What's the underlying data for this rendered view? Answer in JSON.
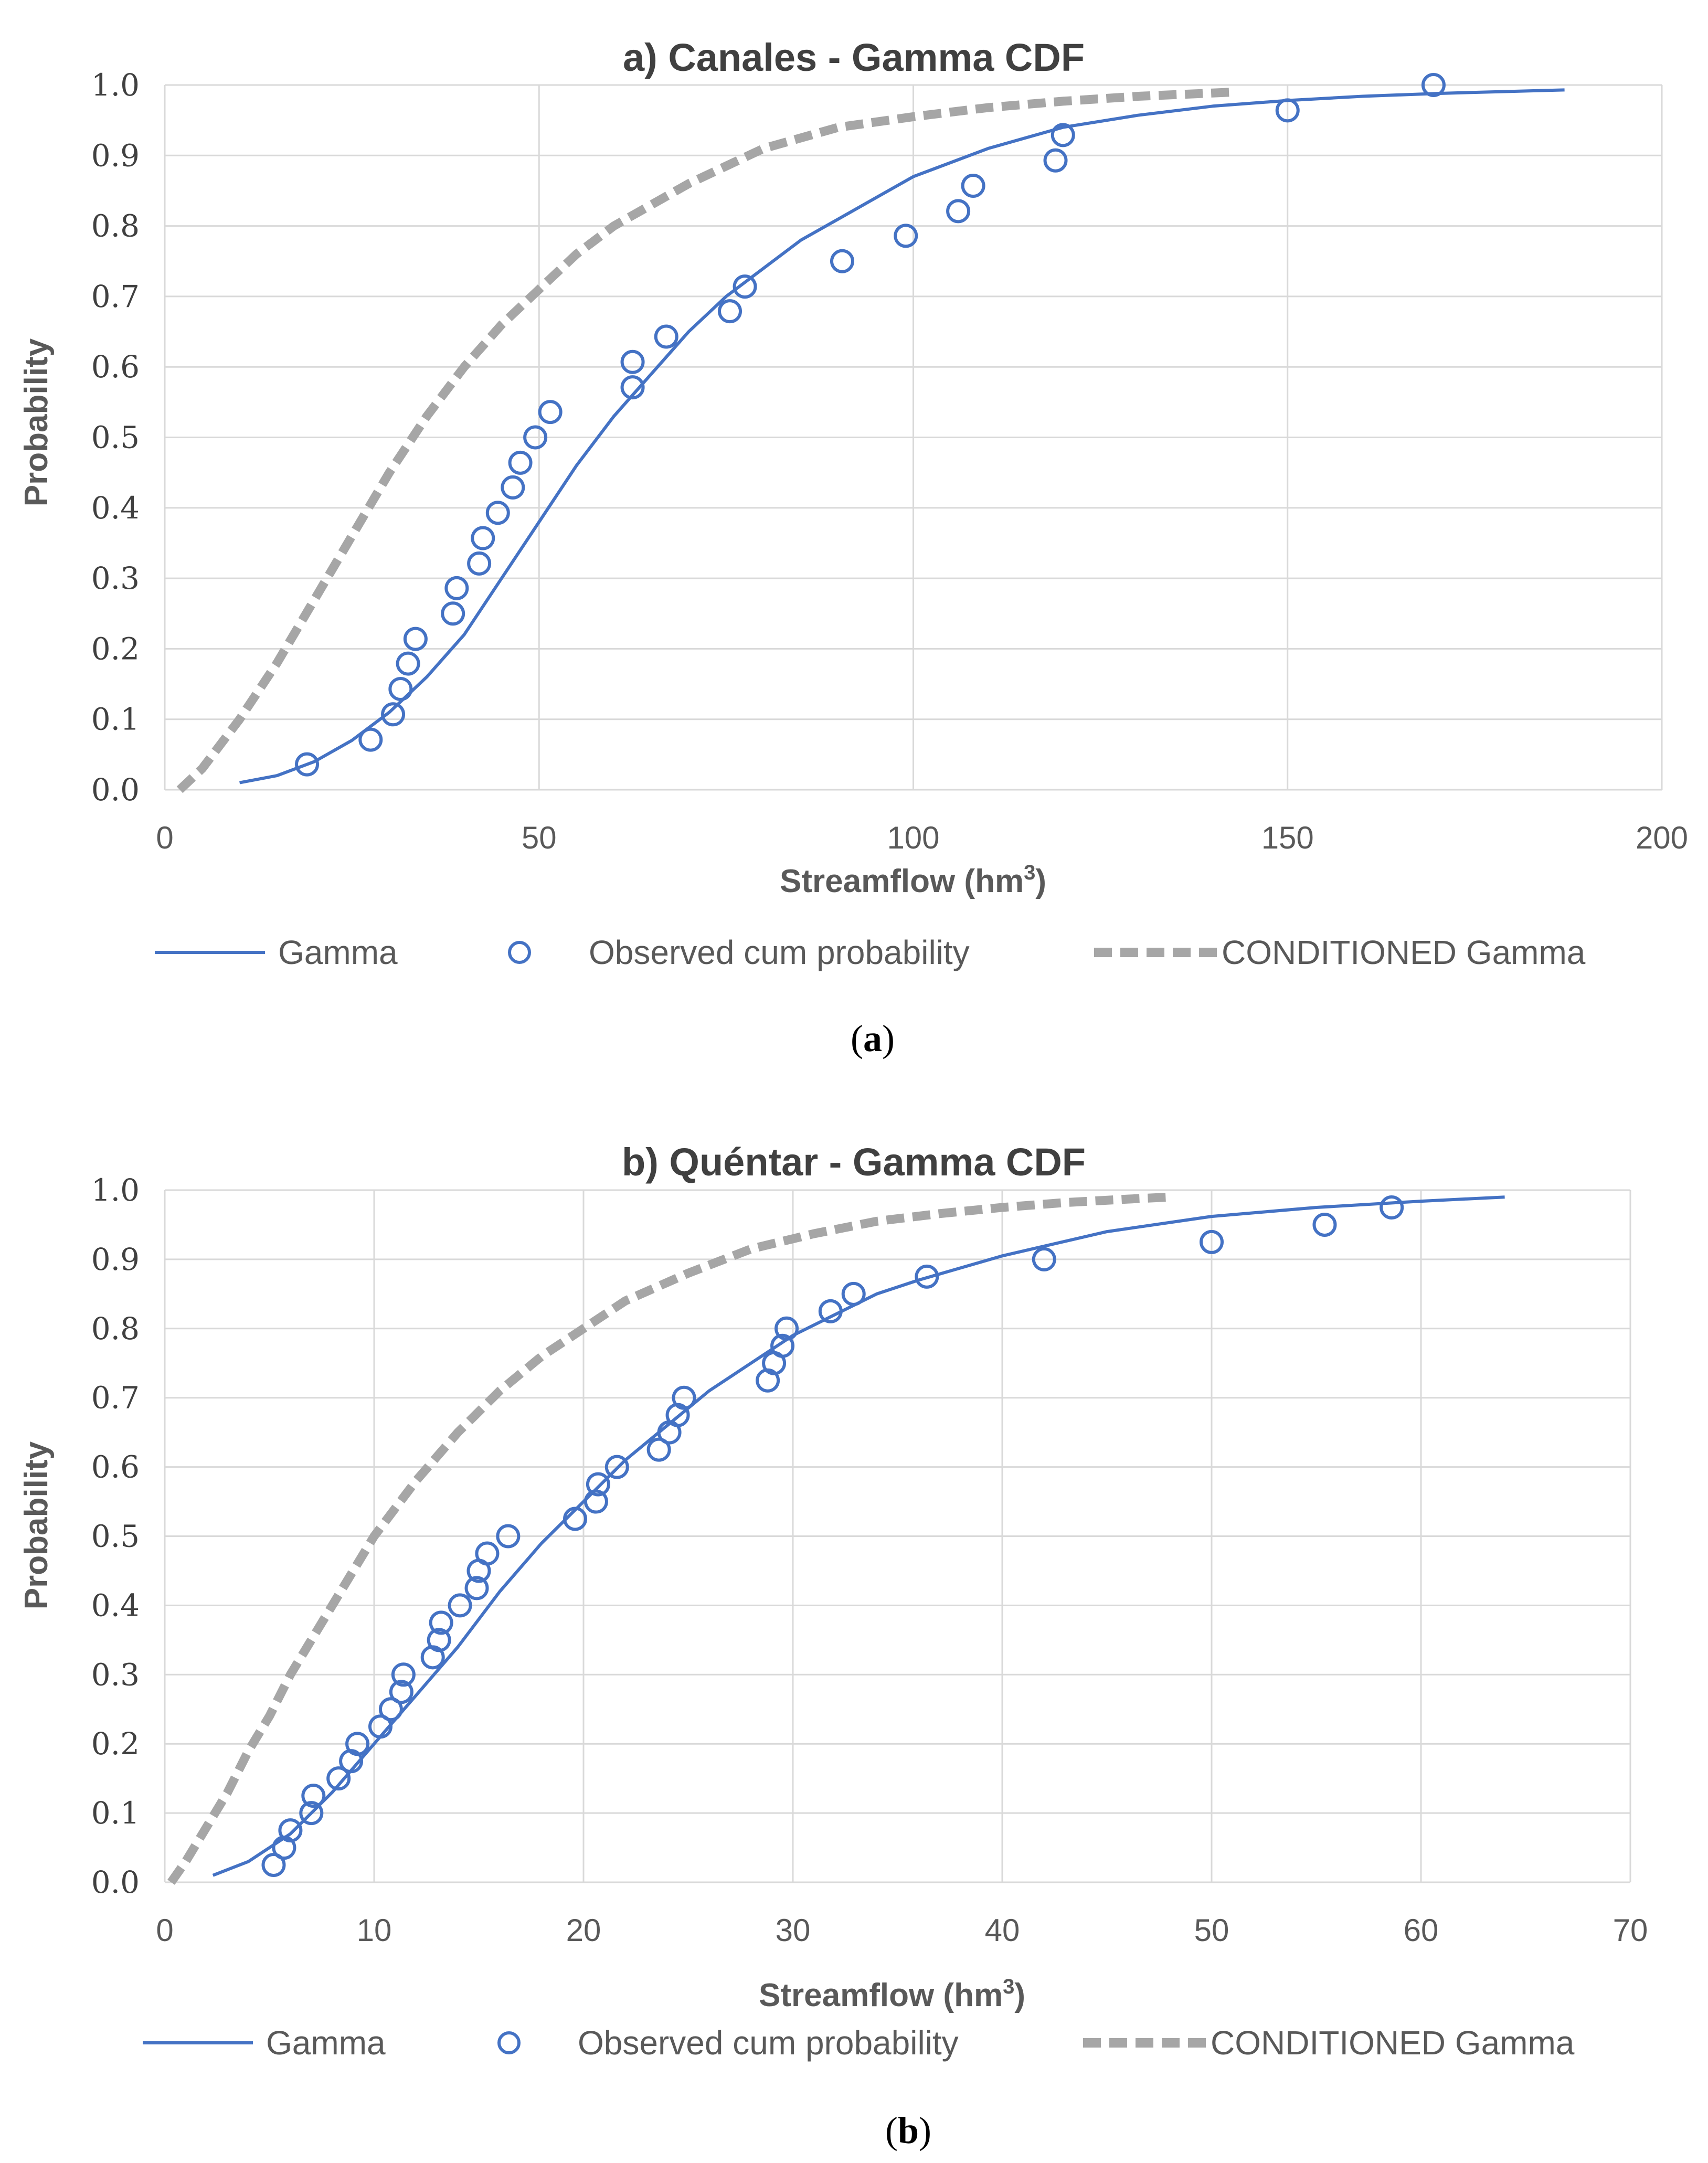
{
  "colors": {
    "gamma": "#4472C4",
    "conditioned": "#A6A6A6",
    "grid": "#D9D9D9",
    "axis_text": "#595959"
  },
  "legend": {
    "gamma": "Gamma",
    "observed": "Observed cum probability",
    "conditioned": "CONDITIONED Gamma"
  },
  "captions": {
    "a_open": "(",
    "a_letter": "a",
    "a_close": ")",
    "b_open": "(",
    "b_letter": "b",
    "b_close": ")"
  },
  "chart_data": [
    {
      "type": "line",
      "title": "a) Canales - Gamma CDF",
      "xlabel": "Streamflow (hm",
      "xlabel_sup": "3",
      "xlabel_close": ")",
      "ylabel": "Probability",
      "xlim": [
        0,
        200
      ],
      "ylim": [
        0,
        1
      ],
      "xticks": [
        0,
        50,
        100,
        150,
        200
      ],
      "xtick_labels": [
        "0",
        "50",
        "100",
        "150",
        "200"
      ],
      "yticks": [
        0,
        0.1,
        0.2,
        0.3,
        0.4,
        0.5,
        0.6,
        0.7,
        0.8,
        0.9,
        1.0
      ],
      "ytick_labels": [
        "0.0",
        "0.1",
        "0.2",
        "0.3",
        "0.4",
        "0.5",
        "0.6",
        "0.7",
        "0.8",
        "0.9",
        "1.0"
      ],
      "grid": true,
      "legend_position": "bottom",
      "series": [
        {
          "name": "Gamma",
          "style": "solid",
          "x": [
            10,
            15,
            20,
            25,
            30,
            35,
            40,
            45,
            50,
            55,
            60,
            65,
            70,
            75,
            80,
            85,
            90,
            95,
            100,
            110,
            120,
            130,
            140,
            150,
            160,
            170,
            180,
            187
          ],
          "y": [
            0.01,
            0.02,
            0.04,
            0.07,
            0.11,
            0.16,
            0.22,
            0.3,
            0.38,
            0.46,
            0.53,
            0.59,
            0.65,
            0.7,
            0.74,
            0.78,
            0.81,
            0.84,
            0.87,
            0.91,
            0.94,
            0.957,
            0.97,
            0.978,
            0.984,
            0.988,
            0.991,
            0.993
          ]
        },
        {
          "name": "Observed cum probability",
          "style": "markers",
          "x": [
            19,
            27.5,
            30.5,
            31.5,
            32.5,
            33.5,
            38.5,
            39,
            42,
            42.5,
            44.5,
            46.5,
            47.5,
            49.5,
            51.5,
            62.5,
            62.5,
            67,
            75.5,
            77.5,
            90.5,
            99,
            106,
            108,
            119,
            120,
            150,
            169.5
          ],
          "y": [
            0.036,
            0.071,
            0.107,
            0.143,
            0.179,
            0.214,
            0.25,
            0.286,
            0.321,
            0.357,
            0.393,
            0.429,
            0.464,
            0.5,
            0.536,
            0.571,
            0.607,
            0.643,
            0.679,
            0.714,
            0.75,
            0.786,
            0.821,
            0.857,
            0.893,
            0.929,
            0.964,
            1.0
          ]
        },
        {
          "name": "CONDITIONED Gamma",
          "style": "dashed",
          "x": [
            2,
            5,
            10,
            15,
            20,
            25,
            30,
            35,
            40,
            45,
            50,
            55,
            60,
            70,
            80,
            90,
            100,
            110,
            120,
            130,
            143
          ],
          "y": [
            0.0,
            0.03,
            0.1,
            0.18,
            0.27,
            0.36,
            0.45,
            0.53,
            0.6,
            0.66,
            0.71,
            0.76,
            0.8,
            0.86,
            0.91,
            0.94,
            0.955,
            0.968,
            0.977,
            0.984,
            0.99
          ]
        }
      ]
    },
    {
      "type": "line",
      "title": "b) Quéntar - Gamma CDF",
      "xlabel": "Streamflow (hm",
      "xlabel_sup": "3",
      "xlabel_close": ")",
      "ylabel": "Probability",
      "xlim": [
        0,
        70
      ],
      "ylim": [
        0,
        1
      ],
      "xticks": [
        0,
        10,
        20,
        30,
        40,
        50,
        60,
        70
      ],
      "xtick_labels": [
        "0",
        "10",
        "20",
        "30",
        "40",
        "50",
        "60",
        "70"
      ],
      "yticks": [
        0,
        0.1,
        0.2,
        0.3,
        0.4,
        0.5,
        0.6,
        0.7,
        0.8,
        0.9,
        1.0
      ],
      "ytick_labels": [
        "0.0",
        "0.1",
        "0.2",
        "0.3",
        "0.4",
        "0.5",
        "0.6",
        "0.7",
        "0.8",
        "0.9",
        "1.0"
      ],
      "grid": true,
      "legend_position": "bottom",
      "series": [
        {
          "name": "Gamma",
          "style": "solid",
          "x": [
            2.3,
            4,
            6,
            8,
            10,
            12,
            14,
            16,
            18,
            20,
            22,
            24,
            26,
            28,
            30,
            32,
            34,
            36,
            40,
            45,
            50,
            55,
            60,
            64
          ],
          "y": [
            0.01,
            0.03,
            0.07,
            0.13,
            0.2,
            0.27,
            0.34,
            0.42,
            0.49,
            0.55,
            0.61,
            0.66,
            0.71,
            0.75,
            0.79,
            0.82,
            0.85,
            0.87,
            0.905,
            0.94,
            0.962,
            0.975,
            0.984,
            0.99
          ]
        },
        {
          "name": "Observed cum probability",
          "style": "markers",
          "x": [
            5.2,
            5.7,
            6,
            7,
            7.1,
            8.3,
            8.9,
            9.2,
            10.3,
            10.8,
            11.3,
            11.4,
            12.8,
            13.1,
            13.2,
            14.1,
            14.9,
            15,
            15.4,
            16.4,
            19.6,
            20.6,
            20.7,
            21.6,
            23.6,
            24.1,
            24.5,
            24.8,
            28.8,
            29.1,
            29.5,
            29.7,
            31.8,
            32.9,
            36.4,
            42,
            50,
            55.4,
            58.6
          ],
          "y": [
            0.025,
            0.05,
            0.075,
            0.1,
            0.125,
            0.15,
            0.175,
            0.2,
            0.225,
            0.25,
            0.275,
            0.3,
            0.325,
            0.35,
            0.375,
            0.4,
            0.425,
            0.45,
            0.475,
            0.5,
            0.525,
            0.55,
            0.575,
            0.6,
            0.625,
            0.65,
            0.675,
            0.7,
            0.725,
            0.75,
            0.775,
            0.8,
            0.825,
            0.85,
            0.875,
            0.9,
            0.925,
            0.95,
            0.975
          ]
        },
        {
          "name": "CONDITIONED Gamma",
          "style": "dashed",
          "x": [
            0.3,
            1,
            2,
            3,
            4,
            5,
            6,
            7,
            8,
            9,
            10,
            12,
            14,
            16,
            18,
            20,
            22,
            25,
            28,
            31,
            34,
            37,
            40,
            43,
            46,
            48
          ],
          "y": [
            0.0,
            0.03,
            0.08,
            0.13,
            0.19,
            0.24,
            0.3,
            0.35,
            0.4,
            0.45,
            0.5,
            0.58,
            0.65,
            0.71,
            0.76,
            0.8,
            0.84,
            0.88,
            0.915,
            0.937,
            0.955,
            0.966,
            0.975,
            0.982,
            0.987,
            0.99
          ]
        }
      ]
    }
  ]
}
